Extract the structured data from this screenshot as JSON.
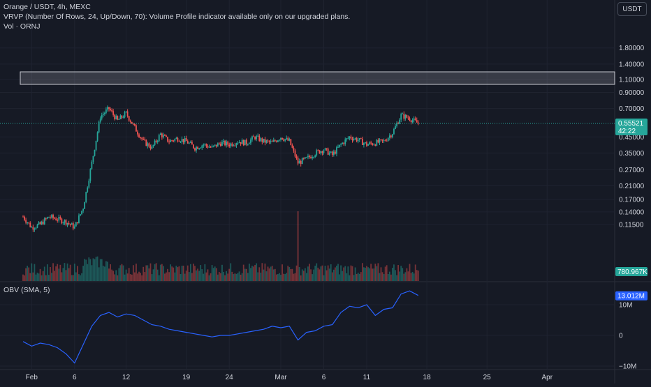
{
  "header": {
    "symbol_line": "Orange / USDT, 4h, MEXC",
    "vrvp_line": "VRVP (Number Of Rows, 24, Up/Down, 70): Volume Profile indicator available only on our upgraded plans.",
    "vol_line": "Vol · ORNJ",
    "quote_currency": "USDT"
  },
  "price_axis": {
    "ticks": [
      "1.80000",
      "1.40000",
      "1.10000",
      "0.90000",
      "0.70000",
      "0.45000",
      "0.35000",
      "0.27000",
      "0.21000",
      "0.17000",
      "0.14000",
      "0.11500"
    ],
    "last_price": "0.55521",
    "countdown": "42:22",
    "volume_label": "780.967K"
  },
  "obv": {
    "title": "OBV (SMA, 5)",
    "value_label": "13.012M",
    "ticks": [
      "10M",
      "0",
      "−10M"
    ]
  },
  "time_axis": [
    "Feb",
    "6",
    "12",
    "19",
    "24",
    "Mar",
    "6",
    "11",
    "18",
    "25",
    "Apr"
  ],
  "colors": {
    "background": "#161A25",
    "up": "#26A69A",
    "down": "#EF5350",
    "obv_line": "#2962FF",
    "text": "#D1D4DC"
  },
  "chart_data": [
    {
      "type": "candlestick",
      "title": "Orange / USDT, 4h, MEXC",
      "y_scale": "log",
      "ylim": [
        0.1,
        2.0
      ],
      "x_range": [
        "2024-01-31",
        "2024-04-01"
      ],
      "price_path": [
        {
          "date": "2024-01-31",
          "close": 0.13
        },
        {
          "date": "2024-02-01",
          "close": 0.11
        },
        {
          "date": "2024-02-02",
          "close": 0.115
        },
        {
          "date": "2024-02-03",
          "close": 0.13
        },
        {
          "date": "2024-02-04",
          "close": 0.125
        },
        {
          "date": "2024-02-05",
          "close": 0.12
        },
        {
          "date": "2024-02-06",
          "close": 0.11
        },
        {
          "date": "2024-02-07",
          "close": 0.15
        },
        {
          "date": "2024-02-08",
          "close": 0.3
        },
        {
          "date": "2024-02-09",
          "close": 0.62
        },
        {
          "date": "2024-02-10",
          "close": 0.7
        },
        {
          "date": "2024-02-11",
          "close": 0.58
        },
        {
          "date": "2024-02-12",
          "close": 0.65
        },
        {
          "date": "2024-02-13",
          "close": 0.52
        },
        {
          "date": "2024-02-14",
          "close": 0.42
        },
        {
          "date": "2024-02-15",
          "close": 0.38
        },
        {
          "date": "2024-02-16",
          "close": 0.47
        },
        {
          "date": "2024-02-17",
          "close": 0.42
        },
        {
          "date": "2024-02-18",
          "close": 0.44
        },
        {
          "date": "2024-02-19",
          "close": 0.42
        },
        {
          "date": "2024-02-20",
          "close": 0.38
        },
        {
          "date": "2024-02-21",
          "close": 0.4
        },
        {
          "date": "2024-02-22",
          "close": 0.38
        },
        {
          "date": "2024-02-23",
          "close": 0.41
        },
        {
          "date": "2024-02-24",
          "close": 0.4
        },
        {
          "date": "2024-02-25",
          "close": 0.42
        },
        {
          "date": "2024-02-26",
          "close": 0.41
        },
        {
          "date": "2024-02-27",
          "close": 0.45
        },
        {
          "date": "2024-02-28",
          "close": 0.42
        },
        {
          "date": "2024-02-29",
          "close": 0.41
        },
        {
          "date": "2024-03-01",
          "close": 0.45
        },
        {
          "date": "2024-03-02",
          "close": 0.42
        },
        {
          "date": "2024-03-03",
          "close": 0.3
        },
        {
          "date": "2024-03-04",
          "close": 0.32
        },
        {
          "date": "2024-03-05",
          "close": 0.35
        },
        {
          "date": "2024-03-06",
          "close": 0.37
        },
        {
          "date": "2024-03-07",
          "close": 0.34
        },
        {
          "date": "2024-03-08",
          "close": 0.4
        },
        {
          "date": "2024-03-09",
          "close": 0.45
        },
        {
          "date": "2024-03-10",
          "close": 0.43
        },
        {
          "date": "2024-03-11",
          "close": 0.4
        },
        {
          "date": "2024-03-12",
          "close": 0.41
        },
        {
          "date": "2024-03-13",
          "close": 0.42
        },
        {
          "date": "2024-03-14",
          "close": 0.48
        },
        {
          "date": "2024-03-15",
          "close": 0.63
        },
        {
          "date": "2024-03-16",
          "close": 0.6
        },
        {
          "date": "2024-03-17",
          "close": 0.55521
        }
      ],
      "range_box": {
        "low": 1.02,
        "high": 1.24
      },
      "volume_spike": {
        "date": "2024-03-03"
      }
    },
    {
      "type": "line",
      "title": "OBV (SMA, 5)",
      "ylim": [
        -12,
        15
      ],
      "y_unit": "M",
      "series": [
        {
          "values": [
            {
              "date": "2024-01-31",
              "value": -2.0
            },
            {
              "date": "2024-02-01",
              "value": -3.5
            },
            {
              "date": "2024-02-02",
              "value": -2.5
            },
            {
              "date": "2024-02-03",
              "value": -3.0
            },
            {
              "date": "2024-02-04",
              "value": -4.0
            },
            {
              "date": "2024-02-05",
              "value": -6.0
            },
            {
              "date": "2024-02-06",
              "value": -9.0
            },
            {
              "date": "2024-02-07",
              "value": -3.0
            },
            {
              "date": "2024-02-08",
              "value": 3.0
            },
            {
              "date": "2024-02-09",
              "value": 6.5
            },
            {
              "date": "2024-02-10",
              "value": 7.5
            },
            {
              "date": "2024-02-11",
              "value": 6.0
            },
            {
              "date": "2024-02-12",
              "value": 7.0
            },
            {
              "date": "2024-02-13",
              "value": 6.5
            },
            {
              "date": "2024-02-14",
              "value": 5.0
            },
            {
              "date": "2024-02-15",
              "value": 3.5
            },
            {
              "date": "2024-02-16",
              "value": 3.0
            },
            {
              "date": "2024-02-17",
              "value": 2.0
            },
            {
              "date": "2024-02-18",
              "value": 1.5
            },
            {
              "date": "2024-02-19",
              "value": 1.0
            },
            {
              "date": "2024-02-20",
              "value": 0.5
            },
            {
              "date": "2024-02-21",
              "value": 0.0
            },
            {
              "date": "2024-02-22",
              "value": -0.5
            },
            {
              "date": "2024-02-23",
              "value": 0.0
            },
            {
              "date": "2024-02-24",
              "value": 0.0
            },
            {
              "date": "2024-02-25",
              "value": 0.5
            },
            {
              "date": "2024-02-26",
              "value": 1.0
            },
            {
              "date": "2024-02-27",
              "value": 1.5
            },
            {
              "date": "2024-02-28",
              "value": 2.0
            },
            {
              "date": "2024-02-29",
              "value": 3.0
            },
            {
              "date": "2024-03-01",
              "value": 2.5
            },
            {
              "date": "2024-03-02",
              "value": 3.0
            },
            {
              "date": "2024-03-03",
              "value": -1.5
            },
            {
              "date": "2024-03-04",
              "value": 1.0
            },
            {
              "date": "2024-03-05",
              "value": 1.5
            },
            {
              "date": "2024-03-06",
              "value": 3.0
            },
            {
              "date": "2024-03-07",
              "value": 3.5
            },
            {
              "date": "2024-03-08",
              "value": 7.5
            },
            {
              "date": "2024-03-09",
              "value": 9.5
            },
            {
              "date": "2024-03-10",
              "value": 9.0
            },
            {
              "date": "2024-03-11",
              "value": 10.0
            },
            {
              "date": "2024-03-12",
              "value": 6.5
            },
            {
              "date": "2024-03-13",
              "value": 8.5
            },
            {
              "date": "2024-03-14",
              "value": 9.0
            },
            {
              "date": "2024-03-15",
              "value": 13.5
            },
            {
              "date": "2024-03-16",
              "value": 14.5
            },
            {
              "date": "2024-03-17",
              "value": 13.012
            }
          ]
        }
      ]
    }
  ]
}
